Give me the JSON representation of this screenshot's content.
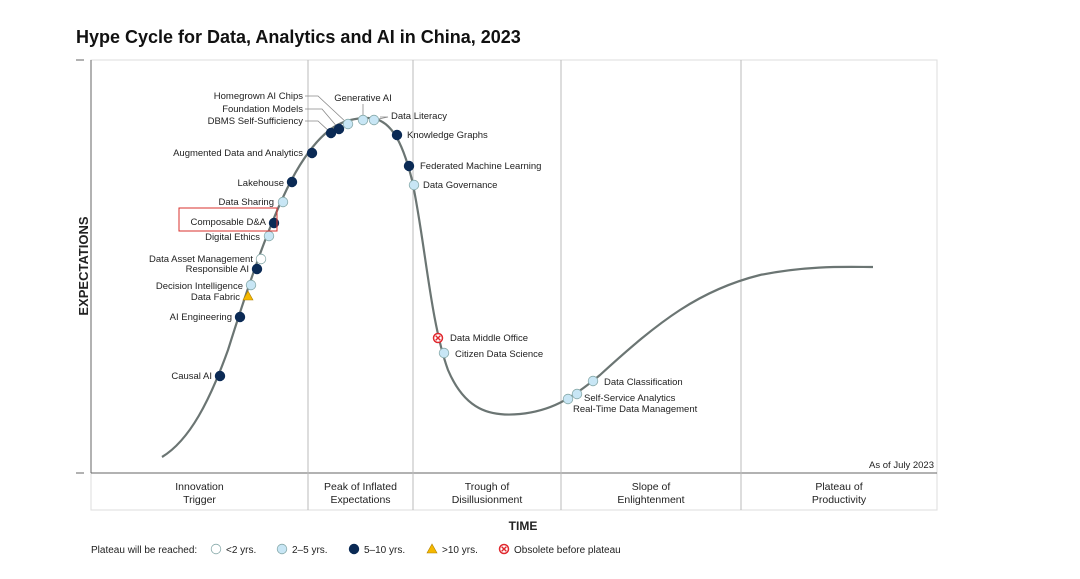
{
  "chart_data": {
    "type": "scatter",
    "title": "Hype Cycle for Data, Analytics and AI in China, 2023",
    "ylabel": "EXPECTATIONS",
    "xlabel": "TIME",
    "as_of": "As of July 2023",
    "phases": [
      "Innovation\nTrigger",
      "Peak of Inflated\nExpectations",
      "Trough of\nDisillusionment",
      "Slope of\nEnlightenment",
      "Plateau of\nProductivity"
    ],
    "legend": {
      "title": "Plateau will be reached:",
      "items": [
        {
          "key": "lt2",
          "label": "<2 yrs."
        },
        {
          "key": "2to5",
          "label": "2–5 yrs."
        },
        {
          "key": "5to10",
          "label": "5–10 yrs."
        },
        {
          "key": "gt10",
          "label": ">10 yrs."
        },
        {
          "key": "obsolete",
          "label": "Obsolete before plateau"
        }
      ]
    },
    "colors": {
      "lt2": "#ffffff",
      "2to5": "#c8e6f5",
      "5to10": "#0b2a55",
      "gt10": "#f5b800",
      "obsolete": "#e0282e",
      "curve": "#6b7573",
      "highlight": "#d9302c"
    },
    "highlighted": "Composable D&A",
    "technologies": [
      {
        "name": "Causal AI",
        "plateau": "5to10",
        "phase": "Innovation Trigger"
      },
      {
        "name": "AI Engineering",
        "plateau": "5to10",
        "phase": "Innovation Trigger"
      },
      {
        "name": "Data Fabric",
        "plateau": "gt10",
        "phase": "Innovation Trigger"
      },
      {
        "name": "Decision Intelligence",
        "plateau": "2to5",
        "phase": "Innovation Trigger"
      },
      {
        "name": "Responsible AI",
        "plateau": "5to10",
        "phase": "Innovation Trigger"
      },
      {
        "name": "Data Asset Management",
        "plateau": "lt2",
        "phase": "Innovation Trigger"
      },
      {
        "name": "Digital Ethics",
        "plateau": "2to5",
        "phase": "Innovation Trigger"
      },
      {
        "name": "Composable D&A",
        "plateau": "5to10",
        "phase": "Innovation Trigger"
      },
      {
        "name": "Data Sharing",
        "plateau": "2to5",
        "phase": "Innovation Trigger"
      },
      {
        "name": "Lakehouse",
        "plateau": "5to10",
        "phase": "Innovation Trigger"
      },
      {
        "name": "Augmented Data and Analytics",
        "plateau": "5to10",
        "phase": "Peak of Inflated Expectations"
      },
      {
        "name": "DBMS Self-Sufficiency",
        "plateau": "5to10",
        "phase": "Peak of Inflated Expectations"
      },
      {
        "name": "Foundation Models",
        "plateau": "5to10",
        "phase": "Peak of Inflated Expectations"
      },
      {
        "name": "Homegrown AI Chips",
        "plateau": "2to5",
        "phase": "Peak of Inflated Expectations"
      },
      {
        "name": "Generative AI",
        "plateau": "2to5",
        "phase": "Peak of Inflated Expectations"
      },
      {
        "name": "Data Literacy",
        "plateau": "2to5",
        "phase": "Peak of Inflated Expectations"
      },
      {
        "name": "Knowledge Graphs",
        "plateau": "5to10",
        "phase": "Peak of Inflated Expectations"
      },
      {
        "name": "Federated Machine Learning",
        "plateau": "5to10",
        "phase": "Peak of Inflated Expectations"
      },
      {
        "name": "Data Governance",
        "plateau": "2to5",
        "phase": "Trough of Disillusionment"
      },
      {
        "name": "Data Middle Office",
        "plateau": "obsolete",
        "phase": "Trough of Disillusionment"
      },
      {
        "name": "Citizen Data Science",
        "plateau": "2to5",
        "phase": "Trough of Disillusionment"
      },
      {
        "name": "Real-Time Data Management",
        "plateau": "2to5",
        "phase": "Slope of Enlightenment"
      },
      {
        "name": "Self-Service Analytics",
        "plateau": "2to5",
        "phase": "Slope of Enlightenment"
      },
      {
        "name": "Data Classification",
        "plateau": "2to5",
        "phase": "Slope of Enlightenment"
      }
    ]
  }
}
